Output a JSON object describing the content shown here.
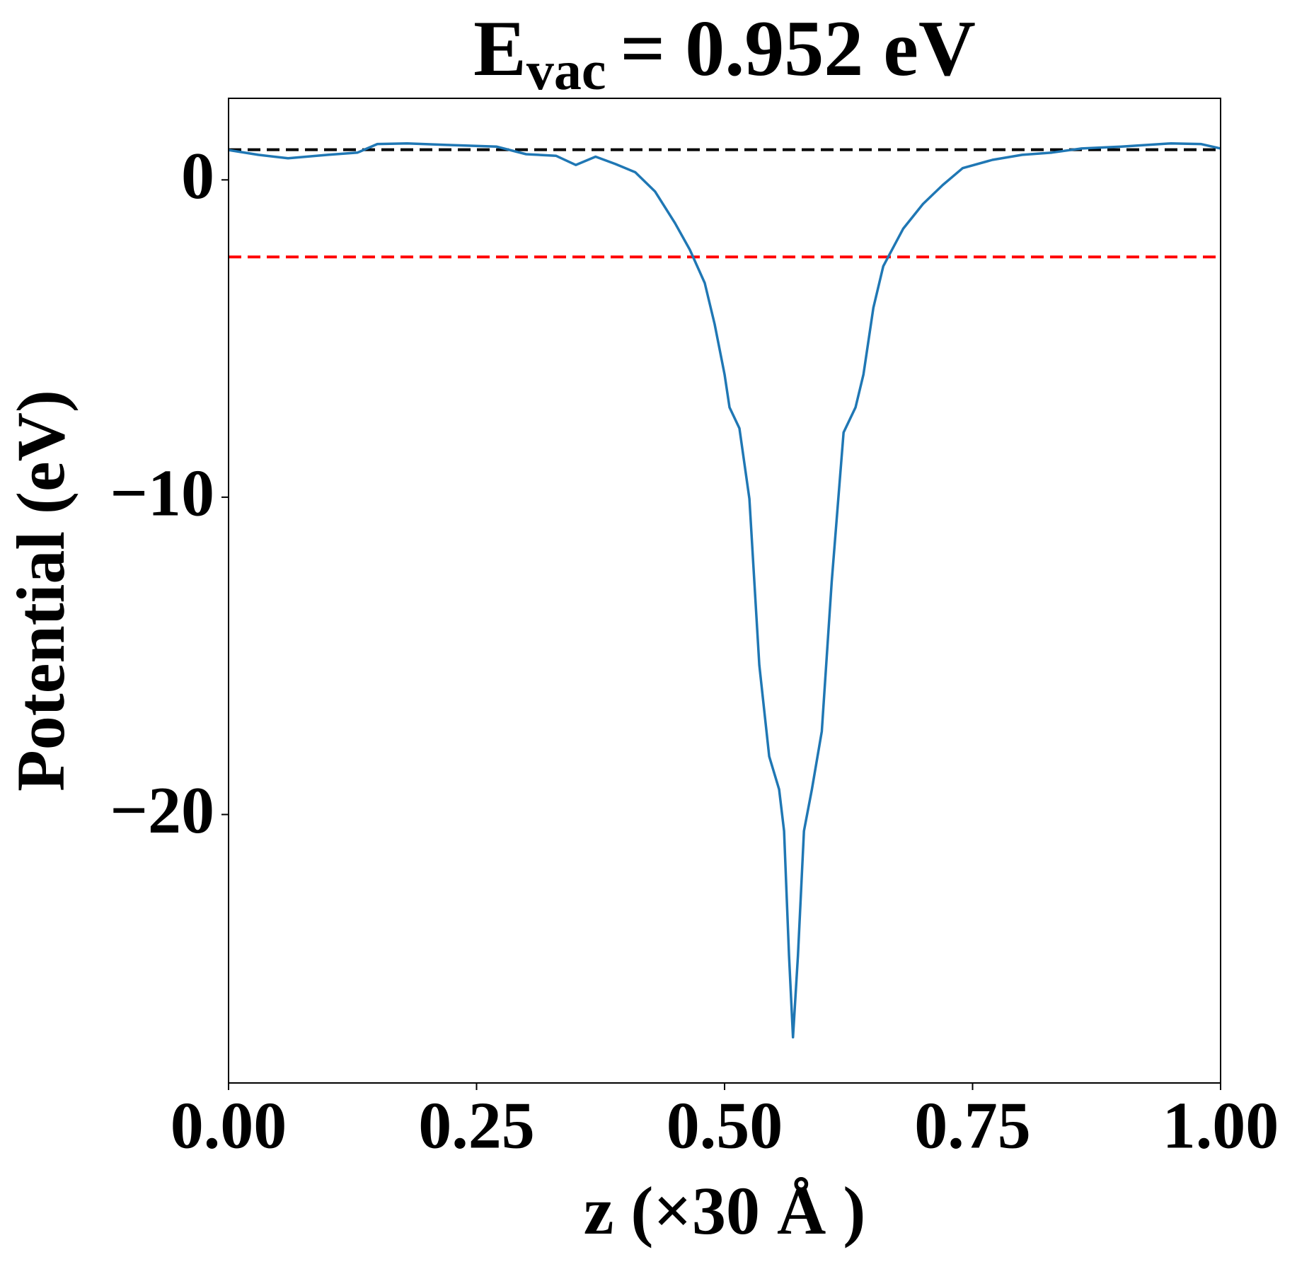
{
  "chart_data": {
    "type": "line",
    "title": {
      "main": "E",
      "subscript": "vac",
      "rest": "= 0.952 eV"
    },
    "x_label": "z (×30 Å )",
    "y_label": "Potential (eV)",
    "x": [
      0.0,
      0.03,
      0.06,
      0.1,
      0.13,
      0.15,
      0.18,
      0.22,
      0.27,
      0.3,
      0.33,
      0.35,
      0.37,
      0.39,
      0.41,
      0.43,
      0.45,
      0.465,
      0.48,
      0.49,
      0.5,
      0.505,
      0.515,
      0.525,
      0.535,
      0.545,
      0.555,
      0.56,
      0.565,
      0.569,
      0.574,
      0.58,
      0.588,
      0.598,
      0.608,
      0.62,
      0.632,
      0.64,
      0.65,
      0.66,
      0.68,
      0.7,
      0.72,
      0.74,
      0.77,
      0.8,
      0.83,
      0.86,
      0.9,
      0.95,
      0.98,
      1.0
    ],
    "series": [
      {
        "color": "#1f77b4",
        "values": [
          0.94,
          0.79,
          0.68,
          0.79,
          0.86,
          1.13,
          1.15,
          1.1,
          1.05,
          0.81,
          0.76,
          0.47,
          0.73,
          0.5,
          0.24,
          -0.37,
          -1.36,
          -2.2,
          -3.25,
          -4.55,
          -6.13,
          -7.17,
          -7.83,
          -10.05,
          -15.29,
          -18.17,
          -19.21,
          -20.52,
          -24.45,
          -27.02,
          -24.45,
          -20.52,
          -19.21,
          -17.38,
          -12.67,
          -7.96,
          -7.17,
          -6.13,
          -4.03,
          -2.72,
          -1.54,
          -0.76,
          -0.16,
          0.37,
          0.63,
          0.79,
          0.86,
          0.99,
          1.05,
          1.15,
          1.13,
          0.99
        ]
      }
    ],
    "hlines": [
      {
        "value": 0.952,
        "color": "#000000"
      },
      {
        "value": -2.43,
        "color": "#ff0000"
      }
    ],
    "xlim": [
      0,
      1
    ],
    "ylim": [
      -28.46,
      2.57
    ],
    "xticks": [
      {
        "value": 0,
        "label": "0.00"
      },
      {
        "value": 0.25,
        "label": "0.25"
      },
      {
        "value": 0.5,
        "label": "0.50"
      },
      {
        "value": 0.75,
        "label": "0.75"
      },
      {
        "value": 1,
        "label": "1.00"
      }
    ],
    "yticks": [
      {
        "value": -20,
        "label": "−20"
      },
      {
        "value": -10,
        "label": "−10"
      },
      0
    ]
  }
}
